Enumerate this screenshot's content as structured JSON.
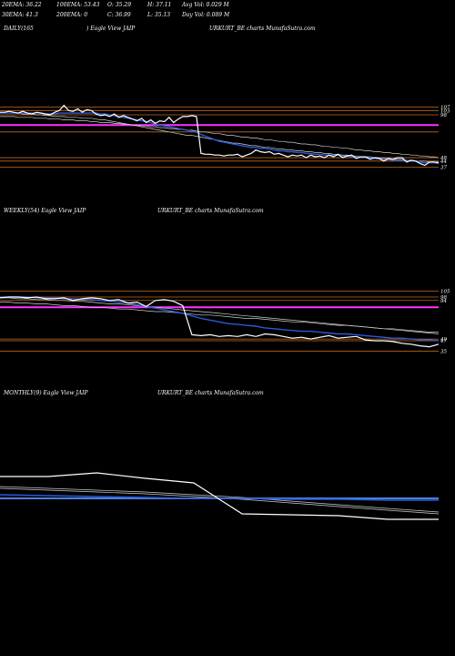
{
  "header": {
    "ema20": "20EMA: 36.22",
    "ema100": "100EMA: 53.43",
    "open": "O: 35.29",
    "high": "H: 37.11",
    "avg_vol": "Avg Vol: 0.029 M",
    "ema30": "30EMA: 41.3",
    "ema200": "200EMA: 0",
    "close": "C: 36.99",
    "low": "L: 35.13",
    "day_vol": "Day Vol: 0.089 M"
  },
  "colors": {
    "background": "#000000",
    "price": "#ffffff",
    "ema_fast": "#2a5bd7",
    "ema_slow": "#cccccc",
    "level_orange": "#c06a20",
    "level_magenta": "#ff33ff",
    "level_blue": "#4a7fe0"
  },
  "chart_data": [
    {
      "type": "line",
      "name": "daily",
      "label_left": "DAILY(165",
      "label_mid": ") Eagle  View  JAIP",
      "label_right": "URKURT_BE charts MunafaSutra.com",
      "right_ticks": [
        "107",
        "103",
        "98",
        "48",
        "44",
        "37"
      ],
      "y_range": [
        30,
        115
      ],
      "x": [
        0,
        5,
        10,
        15,
        20,
        25,
        30,
        35,
        40,
        45,
        50,
        55,
        60,
        65,
        70,
        75,
        80,
        85,
        90,
        95,
        100,
        105,
        110,
        115,
        120,
        125,
        130,
        135,
        140,
        145,
        150,
        155,
        160,
        165,
        170,
        175,
        180,
        185,
        190,
        195,
        200,
        205,
        210,
        215,
        220,
        225,
        230,
        235,
        240,
        245,
        250,
        255,
        260,
        265,
        270,
        275,
        280,
        285,
        290,
        295,
        300,
        305,
        310,
        315,
        320,
        325,
        330,
        335,
        340,
        345,
        350,
        355,
        360,
        365,
        370,
        375,
        380,
        385,
        390,
        395,
        400,
        405,
        410,
        415,
        420,
        425,
        430,
        435,
        440,
        445,
        450,
        455,
        460,
        465,
        470,
        475,
        480
      ],
      "price": [
        101,
        101,
        102,
        101,
        100,
        102,
        100,
        99,
        101,
        100,
        99,
        98,
        101,
        103,
        109,
        103,
        102,
        105,
        101,
        104,
        103,
        99,
        97,
        98,
        96,
        99,
        95,
        97,
        95,
        93,
        91,
        94,
        89,
        92,
        88,
        91,
        90,
        95,
        89,
        93,
        96,
        96,
        97,
        96,
        53,
        52,
        52,
        51,
        51,
        50,
        51,
        51,
        52,
        49,
        51,
        53,
        57,
        55,
        54,
        55,
        52,
        53,
        51,
        49,
        51,
        50,
        51,
        48,
        51,
        49,
        50,
        48,
        51,
        49,
        52,
        48,
        50,
        51,
        47,
        49,
        49,
        46,
        48,
        47,
        44,
        47,
        46,
        48,
        48,
        43,
        45,
        44,
        41,
        39,
        43,
        43,
        42
      ],
      "ema_fast": [
        100,
        100,
        100,
        100,
        100,
        100,
        100,
        100,
        100,
        100,
        99,
        99,
        99,
        100,
        100,
        100,
        100,
        100,
        100,
        100,
        100,
        100,
        99,
        99,
        98,
        97,
        96,
        95,
        94,
        93,
        92,
        91,
        90,
        89,
        87,
        86,
        85,
        84,
        83,
        82,
        81,
        80,
        79,
        78,
        75,
        73,
        71,
        69,
        67,
        66,
        65,
        64,
        63,
        62,
        61,
        60,
        60,
        59,
        59,
        58,
        57,
        56,
        56,
        55,
        55,
        54,
        54,
        53,
        53,
        52,
        52,
        51,
        51,
        51,
        51,
        50,
        50,
        49,
        49,
        48,
        48,
        48,
        47,
        47,
        46,
        46,
        45,
        45,
        45,
        45,
        44,
        44,
        43,
        42,
        42,
        42,
        41
      ],
      "ema_slow": [
        101,
        101,
        100,
        100,
        100,
        99,
        99,
        99,
        98,
        98,
        97,
        97,
        96,
        96,
        96,
        95,
        95,
        95,
        94,
        94,
        94,
        93,
        92,
        92,
        91,
        90,
        89,
        88,
        87,
        86,
        85,
        84,
        83,
        82,
        81,
        80,
        79,
        78,
        77,
        76,
        75,
        74,
        74,
        73,
        72,
        71,
        70,
        69,
        68,
        67,
        66,
        65,
        65,
        64,
        63,
        62,
        62,
        61,
        60,
        60,
        59,
        58,
        58,
        57,
        57,
        56,
        56,
        55,
        55,
        54,
        54,
        53,
        53,
        52,
        52,
        51,
        51,
        50,
        50,
        49,
        49,
        49,
        48,
        48,
        47,
        47,
        46,
        46,
        46,
        45,
        45,
        44,
        44,
        44,
        43,
        43,
        43
      ],
      "ema_100": [
        96,
        96,
        96,
        96,
        95,
        95,
        95,
        95,
        94,
        94,
        94,
        93,
        93,
        93,
        92,
        92,
        92,
        91,
        91,
        91,
        90,
        90,
        89,
        89,
        89,
        88,
        88,
        87,
        87,
        86,
        86,
        85,
        85,
        84,
        84,
        83,
        83,
        82,
        82,
        81,
        81,
        80,
        80,
        79,
        78,
        78,
        77,
        76,
        76,
        75,
        74,
        74,
        73,
        72,
        72,
        71,
        71,
        70,
        69,
        69,
        68,
        67,
        67,
        66,
        66,
        65,
        64,
        64,
        63,
        63,
        62,
        61,
        61,
        60,
        60,
        59,
        59,
        58,
        57,
        57,
        56,
        56,
        55,
        55,
        54,
        54,
        53,
        53,
        52,
        52,
        51,
        51,
        50,
        50,
        49,
        49,
        48
      ],
      "levels": [
        {
          "value": 107,
          "color": "#c06a20"
        },
        {
          "value": 103,
          "color": "#c06a20"
        },
        {
          "value": 98,
          "color": "#c06a20"
        },
        {
          "value": 86,
          "color": "#ff33ff"
        },
        {
          "value": 48,
          "color": "#c06a20"
        },
        {
          "value": 44,
          "color": "#c06a20"
        },
        {
          "value": 37,
          "color": "#c06a20"
        },
        {
          "value": 78,
          "color": "#c06a20"
        }
      ]
    },
    {
      "type": "line",
      "name": "weekly",
      "label_left": "WEEKLY(54) Eagle  View  JAIP",
      "label_mid": "",
      "label_right": "URKURT_BE charts MunafaSutra.com",
      "right_ticks": [
        "105",
        "98",
        "94",
        "49",
        "47",
        "35"
      ],
      "y_range": [
        30,
        115
      ],
      "x": [
        0,
        10,
        20,
        30,
        40,
        50,
        60,
        70,
        80,
        90,
        100,
        110,
        120,
        130,
        140,
        150,
        160,
        170,
        180,
        190,
        200,
        210,
        220,
        230,
        240,
        250,
        260,
        270,
        280,
        290,
        300,
        310,
        320,
        330,
        340,
        350,
        360,
        370,
        380,
        390,
        400,
        410,
        420,
        430,
        440,
        450,
        460,
        470,
        480
      ],
      "price": [
        97,
        98,
        98,
        97,
        98,
        96,
        96,
        97,
        94,
        96,
        97,
        96,
        94,
        95,
        91,
        92,
        87,
        94,
        95,
        93,
        88,
        54,
        53,
        54,
        52,
        53,
        52,
        54,
        52,
        55,
        54,
        52,
        50,
        51,
        49,
        51,
        53,
        50,
        51,
        52,
        48,
        47,
        47,
        46,
        44,
        43,
        41,
        40,
        43
      ],
      "ema_fast": [
        98,
        98,
        98,
        98,
        97,
        97,
        97,
        96,
        96,
        95,
        95,
        94,
        93,
        92,
        91,
        89,
        87,
        85,
        83,
        81,
        79,
        76,
        73,
        71,
        69,
        67,
        66,
        65,
        64,
        62,
        61,
        60,
        59,
        58,
        58,
        57,
        56,
        55,
        55,
        54,
        53,
        52,
        51,
        50,
        50,
        49,
        48,
        48,
        47
      ],
      "ema_slow": [
        97,
        97,
        96,
        96,
        95,
        95,
        94,
        94,
        93,
        93,
        92,
        91,
        90,
        90,
        89,
        88,
        87,
        86,
        85,
        84,
        83,
        82,
        81,
        80,
        79,
        78,
        77,
        76,
        75,
        74,
        73,
        72,
        71,
        70,
        69,
        68,
        67,
        66,
        65,
        64,
        63,
        62,
        61,
        60,
        59,
        58,
        57,
        56,
        55
      ],
      "ema_100": [
        92,
        92,
        91,
        91,
        90,
        90,
        89,
        88,
        88,
        87,
        86,
        86,
        85,
        84,
        84,
        83,
        82,
        81,
        81,
        80,
        79,
        78,
        77,
        77,
        76,
        75,
        74,
        73,
        73,
        72,
        71,
        70,
        69,
        69,
        68,
        67,
        66,
        65,
        65,
        64,
        63,
        62,
        61,
        61,
        60,
        59,
        58,
        57,
        57
      ],
      "levels": [
        {
          "value": 105,
          "color": "#c06a20"
        },
        {
          "value": 98,
          "color": "#c06a20"
        },
        {
          "value": 94,
          "color": "#c06a20"
        },
        {
          "value": 86,
          "color": "#ff33ff"
        },
        {
          "value": 49,
          "color": "#c06a20"
        },
        {
          "value": 47,
          "color": "#c06a20"
        },
        {
          "value": 35,
          "color": "#c06a20"
        }
      ]
    },
    {
      "type": "line",
      "name": "monthly",
      "label_left": "MONTHLY(9) Eagle  View  JAIP",
      "label_mid": "",
      "label_right": "URKURT_BE charts MunafaSutra.com",
      "right_ticks": [],
      "y_range": [
        30,
        115
      ],
      "x": [
        0,
        53,
        106,
        159,
        212,
        265,
        318,
        371,
        424,
        480
      ],
      "price": [
        97,
        97,
        101,
        95,
        90,
        56,
        55,
        54,
        50,
        50
      ],
      "ema_fast": [
        77,
        76,
        75,
        74,
        73,
        73,
        72,
        72,
        71,
        71
      ],
      "ema_slow": [
        86,
        84,
        82,
        80,
        77,
        74,
        70,
        66,
        62,
        58
      ],
      "ema_100": [
        84,
        82,
        80,
        78,
        75,
        72,
        68,
        64,
        60,
        56
      ],
      "levels": [
        {
          "value": 73,
          "color": "#4a7fe0"
        }
      ]
    }
  ]
}
